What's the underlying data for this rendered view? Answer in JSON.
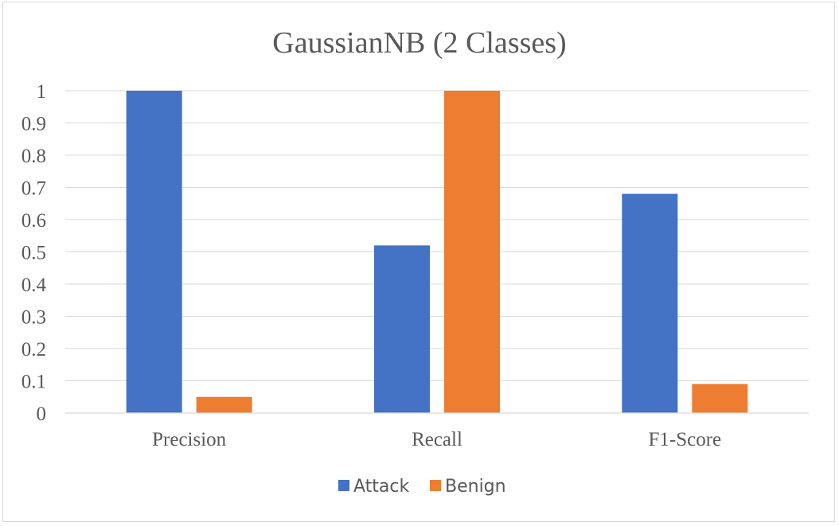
{
  "chart_data": {
    "type": "bar",
    "title": "GaussianNB (2  Classes)",
    "categories": [
      "Precision",
      "Recall",
      "F1-Score"
    ],
    "series": [
      {
        "name": "Attack",
        "values": [
          1.0,
          0.52,
          0.68
        ],
        "color": "#4472C4"
      },
      {
        "name": "Benign",
        "values": [
          0.05,
          1.0,
          0.09
        ],
        "color": "#ED7D31"
      }
    ],
    "ylim": [
      0,
      1
    ],
    "yticks": [
      "0",
      "0.1",
      "0.2",
      "0.3",
      "0.4",
      "0.5",
      "0.6",
      "0.7",
      "0.8",
      "0.9",
      "1"
    ],
    "grid": true,
    "legend_position": "bottom"
  }
}
